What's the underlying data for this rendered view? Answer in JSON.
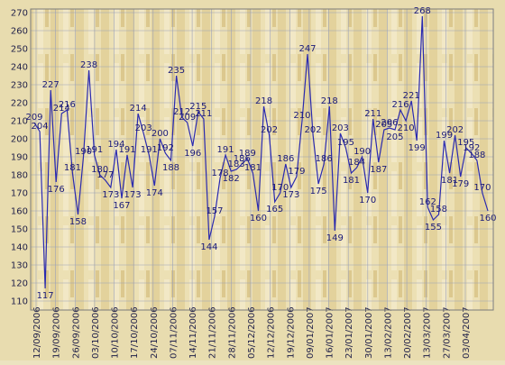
{
  "chart_data": {
    "type": "line",
    "title": "",
    "xlabel": "",
    "ylabel": "",
    "ylim": [
      105,
      272
    ],
    "yticks": [
      110,
      120,
      130,
      140,
      150,
      160,
      170,
      180,
      190,
      200,
      210,
      220,
      230,
      240,
      250,
      260,
      270
    ],
    "x_tick_labels": [
      "12/09/2006",
      "19/09/2006",
      "26/09/2006",
      "03/10/2006",
      "10/10/2006",
      "17/10/2006",
      "24/10/2006",
      "07/11/2006",
      "14/11/2006",
      "21/11/2006",
      "28/11/2006",
      "05/12/2006",
      "12/12/2006",
      "19/12/2006",
      "09/01/2007",
      "16/01/2007",
      "23/01/2007",
      "30/01/2007",
      "13/02/2007",
      "20/02/2007",
      "13/03/2007",
      "27/03/2007",
      "03/04/2007"
    ],
    "grid": true,
    "series": [
      {
        "color": "#2a2ab0",
        "values": [
          209,
          204,
          117,
          227,
          176,
          214,
          216,
          181,
          158,
          190,
          238,
          191,
          180,
          177,
          173,
          194,
          167,
          191,
          173,
          214,
          203,
          191,
          174,
          200,
          192,
          188,
          235,
          212,
          209,
          196,
          215,
          211,
          144,
          157,
          178,
          191,
          182,
          183,
          186,
          189,
          181,
          160,
          218,
          202,
          165,
          170,
          186,
          173,
          179,
          210,
          247,
          202,
          175,
          186,
          218,
          149,
          203,
          195,
          181,
          184,
          190,
          170,
          211,
          187,
          205,
          206,
          205,
          216,
          210,
          221,
          199,
          268,
          162,
          155,
          158,
          199,
          181,
          202,
          179,
          195,
          192,
          188,
          170,
          160
        ]
      }
    ]
  }
}
